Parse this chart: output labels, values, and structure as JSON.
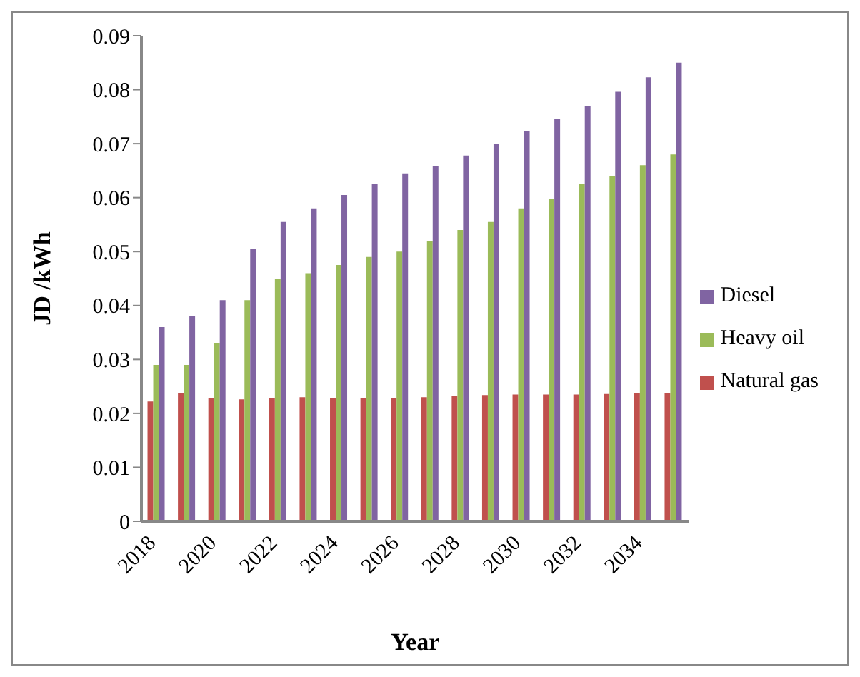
{
  "chart_data": {
    "type": "bar",
    "xlabel": "Year",
    "ylabel": "JD /kWh",
    "categories": [
      "2018",
      null,
      "2020",
      null,
      "2022",
      null,
      "2024",
      null,
      "2026",
      null,
      "2028",
      null,
      "2030",
      null,
      "2032",
      null,
      "2034",
      null
    ],
    "series": [
      {
        "name": "Natural gas",
        "color": "#c0504d",
        "values": [
          0.0222,
          0.0237,
          0.0228,
          0.0226,
          0.0228,
          0.023,
          0.0228,
          0.0228,
          0.0229,
          0.023,
          0.0232,
          0.0234,
          0.0235,
          0.0235,
          0.0235,
          0.0236,
          0.0238,
          0.0238
        ]
      },
      {
        "name": "Heavy oil",
        "color": "#9bbb59",
        "values": [
          0.029,
          0.029,
          0.033,
          0.041,
          0.045,
          0.046,
          0.0475,
          0.049,
          0.05,
          0.052,
          0.054,
          0.0555,
          0.058,
          0.0597,
          0.0625,
          0.064,
          0.066,
          0.068
        ]
      },
      {
        "name": "Diesel",
        "color": "#8064a2",
        "values": [
          0.036,
          0.038,
          0.041,
          0.0505,
          0.0555,
          0.058,
          0.0605,
          0.0625,
          0.0645,
          0.0658,
          0.0678,
          0.07,
          0.0723,
          0.0745,
          0.077,
          0.0796,
          0.0823,
          0.085
        ]
      }
    ],
    "ylim": [
      0,
      0.09
    ],
    "yticks": [
      0,
      0.01,
      0.02,
      0.03,
      0.04,
      0.05,
      0.06,
      0.07,
      0.08,
      0.09
    ],
    "grid": false,
    "legend": "right"
  }
}
